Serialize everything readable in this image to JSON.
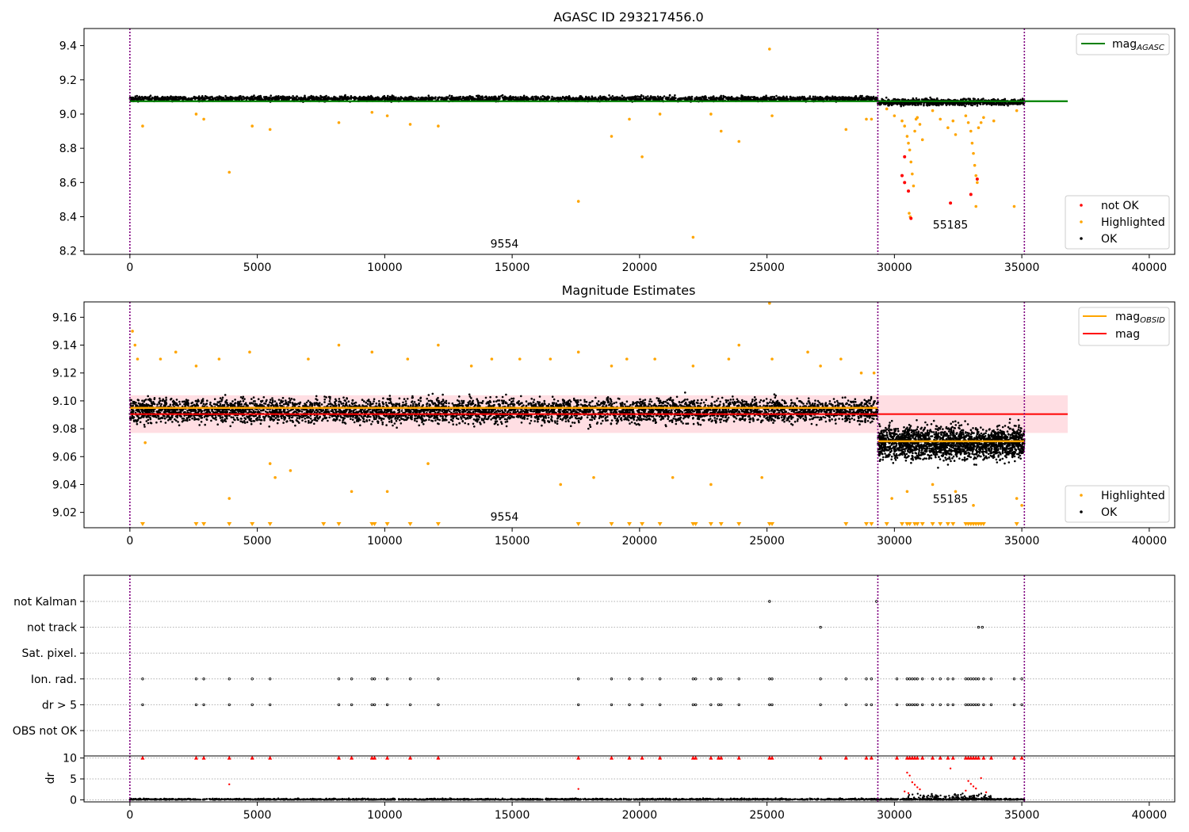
{
  "colors": {
    "ok": "#000000",
    "highlighted": "#ffa500",
    "not_ok": "#ff0000",
    "agasc_line": "#008000",
    "obsid_line": "#ffa500",
    "mag_line": "#ff0000",
    "band": "#ffb6c1",
    "obs_boundary": "#800080",
    "grid": "#b0b0b0"
  },
  "chart_data": [
    {
      "type": "scatter",
      "title": "AGASC ID 293217456.0",
      "xlim": [
        -1800,
        41000
      ],
      "ylim": [
        8.18,
        9.5
      ],
      "xticks": [
        0,
        5000,
        10000,
        15000,
        20000,
        25000,
        30000,
        35000,
        40000
      ],
      "yticks": [
        8.2,
        8.4,
        8.6,
        8.8,
        9.0,
        9.2,
        9.4
      ],
      "mag_agasc": 9.075,
      "obs_boundaries": [
        0,
        29350,
        35100
      ],
      "obsid_annotations": [
        {
          "text": "9554",
          "x": 14700,
          "y": 8.22
        },
        {
          "text": "55185",
          "x": 32200,
          "y": 8.33
        }
      ],
      "ok_bands": [
        {
          "x0": 0,
          "x1": 29350,
          "center": 9.09,
          "spread": 0.02
        },
        {
          "x0": 29350,
          "x1": 35100,
          "center": 9.07,
          "spread": 0.025
        }
      ],
      "highlighted_points": [
        [
          500,
          8.93
        ],
        [
          2600,
          9.0
        ],
        [
          2900,
          8.97
        ],
        [
          3900,
          8.66
        ],
        [
          4800,
          8.93
        ],
        [
          5500,
          8.91
        ],
        [
          8200,
          8.95
        ],
        [
          9500,
          9.01
        ],
        [
          10100,
          8.99
        ],
        [
          11000,
          8.94
        ],
        [
          12100,
          8.93
        ],
        [
          17600,
          8.49
        ],
        [
          18900,
          8.87
        ],
        [
          19600,
          8.97
        ],
        [
          20100,
          8.75
        ],
        [
          20800,
          9.0
        ],
        [
          22100,
          8.28
        ],
        [
          22800,
          9.0
        ],
        [
          23200,
          8.9
        ],
        [
          23900,
          8.84
        ],
        [
          25100,
          9.38
        ],
        [
          25200,
          8.99
        ],
        [
          28100,
          8.91
        ],
        [
          28900,
          8.97
        ],
        [
          29100,
          8.97
        ],
        [
          29700,
          9.03
        ],
        [
          30000,
          8.99
        ],
        [
          30300,
          8.96
        ],
        [
          30400,
          8.93
        ],
        [
          30500,
          8.87
        ],
        [
          30550,
          8.83
        ],
        [
          30600,
          8.79
        ],
        [
          30650,
          8.72
        ],
        [
          30700,
          8.65
        ],
        [
          30750,
          8.58
        ],
        [
          30800,
          8.9
        ],
        [
          30850,
          8.97
        ],
        [
          30900,
          8.98
        ],
        [
          31000,
          8.94
        ],
        [
          31100,
          8.85
        ],
        [
          30580,
          8.42
        ],
        [
          30620,
          8.4
        ],
        [
          31500,
          9.02
        ],
        [
          31800,
          8.97
        ],
        [
          32100,
          8.92
        ],
        [
          32300,
          8.96
        ],
        [
          32400,
          8.88
        ],
        [
          32800,
          8.99
        ],
        [
          32900,
          8.95
        ],
        [
          33000,
          8.9
        ],
        [
          33050,
          8.83
        ],
        [
          33100,
          8.77
        ],
        [
          33150,
          8.7
        ],
        [
          33200,
          8.64
        ],
        [
          33250,
          8.6
        ],
        [
          33300,
          8.92
        ],
        [
          33400,
          8.95
        ],
        [
          33500,
          8.98
        ],
        [
          33200,
          8.46
        ],
        [
          33900,
          8.96
        ],
        [
          34700,
          8.46
        ],
        [
          34800,
          9.02
        ]
      ],
      "notok_points": [
        [
          30400,
          8.75
        ],
        [
          30300,
          8.64
        ],
        [
          30400,
          8.6
        ],
        [
          30550,
          8.55
        ],
        [
          30650,
          8.39
        ],
        [
          32200,
          8.48
        ],
        [
          33000,
          8.53
        ],
        [
          33250,
          8.62
        ]
      ],
      "legend_top": [
        {
          "label": "mag",
          "sub": "AGASC",
          "color": "#008000"
        }
      ],
      "legend_bottom": [
        {
          "label": "not OK",
          "color": "#ff0000"
        },
        {
          "label": "Highlighted",
          "color": "#ffa500"
        },
        {
          "label": "OK",
          "color": "#000000"
        }
      ]
    },
    {
      "type": "scatter",
      "title": "Magnitude Estimates",
      "xlim": [
        -1800,
        41000
      ],
      "ylim": [
        9.009,
        9.171
      ],
      "xticks": [
        0,
        5000,
        10000,
        15000,
        20000,
        25000,
        30000,
        35000,
        40000
      ],
      "yticks": [
        9.02,
        9.04,
        9.06,
        9.08,
        9.1,
        9.12,
        9.14,
        9.16
      ],
      "mag": 9.0905,
      "mag_band": [
        9.077,
        9.104
      ],
      "obsid_mags": [
        {
          "x0": 0,
          "x1": 29350,
          "value": 9.095
        },
        {
          "x0": 29350,
          "x1": 35100,
          "value": 9.071
        }
      ],
      "obs_boundaries": [
        0,
        29350,
        35100
      ],
      "obsid_annotations": [
        {
          "text": "9554",
          "x": 14700,
          "y": 9.014
        },
        {
          "text": "55185",
          "x": 32200,
          "y": 9.027
        }
      ],
      "ok_bands": [
        {
          "x0": 0,
          "x1": 29350,
          "center": 9.093,
          "spread": 0.012
        },
        {
          "x0": 29350,
          "x1": 35100,
          "center": 9.07,
          "spread": 0.016
        }
      ],
      "highlighted_points": [
        [
          100,
          9.15
        ],
        [
          200,
          9.14
        ],
        [
          300,
          9.13
        ],
        [
          600,
          9.07
        ],
        [
          1200,
          9.13
        ],
        [
          1800,
          9.135
        ],
        [
          2600,
          9.125
        ],
        [
          3500,
          9.13
        ],
        [
          3900,
          9.03
        ],
        [
          4700,
          9.135
        ],
        [
          5500,
          9.055
        ],
        [
          5700,
          9.045
        ],
        [
          6300,
          9.05
        ],
        [
          7000,
          9.13
        ],
        [
          8200,
          9.14
        ],
        [
          8700,
          9.035
        ],
        [
          9500,
          9.135
        ],
        [
          10100,
          9.035
        ],
        [
          10900,
          9.13
        ],
        [
          11700,
          9.055
        ],
        [
          12100,
          9.14
        ],
        [
          13400,
          9.125
        ],
        [
          14200,
          9.13
        ],
        [
          15300,
          9.13
        ],
        [
          16500,
          9.13
        ],
        [
          16900,
          9.04
        ],
        [
          17600,
          9.135
        ],
        [
          18200,
          9.045
        ],
        [
          18900,
          9.125
        ],
        [
          19500,
          9.13
        ],
        [
          20600,
          9.13
        ],
        [
          21300,
          9.045
        ],
        [
          22100,
          9.125
        ],
        [
          22800,
          9.04
        ],
        [
          23500,
          9.13
        ],
        [
          23900,
          9.14
        ],
        [
          24800,
          9.045
        ],
        [
          25100,
          9.17
        ],
        [
          25200,
          9.13
        ],
        [
          26600,
          9.135
        ],
        [
          27100,
          9.125
        ],
        [
          27900,
          9.13
        ],
        [
          28700,
          9.12
        ],
        [
          29200,
          9.12
        ],
        [
          29900,
          9.03
        ],
        [
          30500,
          9.035
        ],
        [
          31500,
          9.04
        ],
        [
          32400,
          9.035
        ],
        [
          33100,
          9.025
        ],
        [
          34800,
          9.03
        ],
        [
          35000,
          9.025
        ]
      ],
      "clipped_x": [
        500,
        2600,
        2900,
        3900,
        4800,
        5500,
        7600,
        8200,
        9500,
        9600,
        10100,
        11000,
        12100,
        17600,
        18900,
        19600,
        20100,
        20800,
        22100,
        22200,
        22800,
        23200,
        23900,
        25100,
        25200,
        28100,
        28900,
        29100,
        29700,
        30300,
        30500,
        30600,
        30800,
        30900,
        31100,
        31500,
        31800,
        32100,
        32300,
        32800,
        32900,
        33000,
        33100,
        33200,
        33300,
        33400,
        33500,
        34800
      ],
      "legend_top": [
        {
          "label": "mag",
          "sub": "OBSID",
          "color": "#ffa500"
        },
        {
          "label": "mag",
          "sub": "",
          "color": "#ff0000"
        }
      ],
      "legend_bottom": [
        {
          "label": "Highlighted",
          "color": "#ffa500"
        },
        {
          "label": "OK",
          "color": "#000000"
        }
      ]
    },
    {
      "type": "scatter",
      "xlim": [
        -1800,
        41000
      ],
      "xticks": [
        0,
        5000,
        10000,
        15000,
        20000,
        25000,
        30000,
        35000,
        40000
      ],
      "flag_labels": [
        "not Kalman",
        "not track",
        "Sat. pixel.",
        "Ion. rad.",
        "dr > 5",
        "OBS not OK"
      ],
      "flag_points": {
        "not Kalman": [
          25100,
          29300
        ],
        "not track": [
          27100,
          33300,
          33450
        ],
        "Sat. pixel.": [],
        "Ion. rad.": [
          500,
          2600,
          2900,
          3900,
          4800,
          5500,
          8200,
          8700,
          9500,
          9600,
          10100,
          11000,
          12100,
          17600,
          18900,
          19600,
          20100,
          20800,
          22100,
          22200,
          22800,
          23100,
          23200,
          23900,
          25100,
          25200,
          27100,
          28100,
          28900,
          29100,
          30100,
          30500,
          30600,
          30700,
          30800,
          30900,
          31100,
          31500,
          31800,
          32100,
          32300,
          32800,
          32900,
          33000,
          33100,
          33200,
          33300,
          33500,
          33800,
          34700,
          35000
        ],
        "dr > 5": [
          500,
          2600,
          2900,
          3900,
          4800,
          5500,
          8200,
          8700,
          9500,
          9600,
          10100,
          11000,
          12100,
          17600,
          18900,
          19600,
          20100,
          20800,
          22100,
          22200,
          22800,
          23100,
          23200,
          23900,
          25100,
          25200,
          27100,
          28100,
          28900,
          29100,
          30100,
          30500,
          30600,
          30700,
          30800,
          30900,
          31100,
          31500,
          31800,
          32100,
          32300,
          32800,
          32900,
          33000,
          33100,
          33200,
          33300,
          33500,
          33800,
          34700,
          35000
        ],
        "OBS not OK": []
      },
      "dr": {
        "ylabel": "dr",
        "ylim": [
          -0.5,
          10.5
        ],
        "yticks": [
          0,
          5,
          10
        ],
        "clip_value": 10,
        "clipped_x": [
          500,
          2600,
          2900,
          3900,
          4800,
          5500,
          8200,
          8700,
          9500,
          9600,
          10100,
          11000,
          12100,
          17600,
          18900,
          19600,
          20100,
          20800,
          22100,
          22200,
          22800,
          23100,
          23200,
          23900,
          25100,
          25200,
          27100,
          28100,
          28900,
          29100,
          30100,
          30500,
          30600,
          30700,
          30800,
          30900,
          31100,
          31500,
          31800,
          32100,
          32300,
          32800,
          32900,
          33000,
          33100,
          33200,
          33300,
          33500,
          33800,
          34700,
          35000
        ],
        "scatter_points": [
          [
            3900,
            3.7
          ],
          [
            17600,
            2.6
          ],
          [
            30500,
            6.5
          ],
          [
            30600,
            5.8
          ],
          [
            30700,
            4.2
          ],
          [
            30800,
            3.6
          ],
          [
            30900,
            3.0
          ],
          [
            31000,
            2.5
          ],
          [
            32200,
            7.5
          ],
          [
            32900,
            4.5
          ],
          [
            33000,
            3.8
          ],
          [
            33100,
            3.2
          ],
          [
            33200,
            2.7
          ],
          [
            33400,
            5.2
          ],
          [
            30400,
            2.0
          ],
          [
            30550,
            1.6
          ],
          [
            32800,
            2.2
          ],
          [
            33600,
            1.8
          ]
        ]
      }
    }
  ]
}
